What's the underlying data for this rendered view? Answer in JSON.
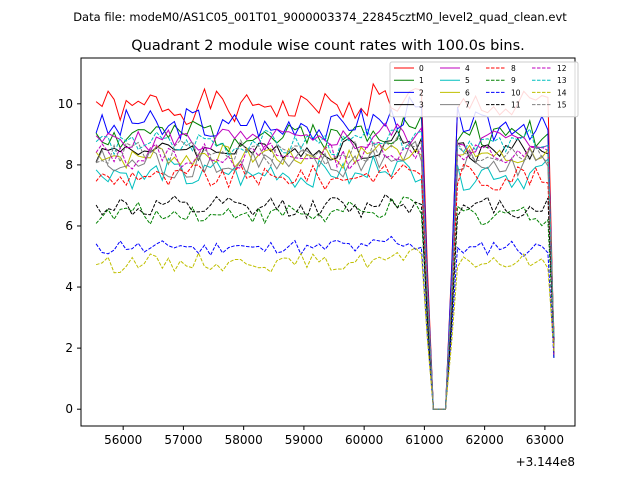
{
  "chart_data": {
    "type": "line",
    "suptitle": "Data file: modeM0/AS1C05_001T01_9000003374_22845cztM0_level2_quad_clean.evt",
    "title": "Quadrant 2 module wise count rates with 100.0s bins.",
    "xlabel": "",
    "ylabel": "",
    "x_offset_label": "+3.144e8",
    "xlim": [
      55300,
      63500
    ],
    "ylim": [
      -0.55,
      11.5
    ],
    "x_ticks": [
      56000,
      57000,
      58000,
      59000,
      60000,
      61000,
      62000,
      63000
    ],
    "x_tick_labels": [
      "56000",
      "57000",
      "58000",
      "59000",
      "60000",
      "61000",
      "62000",
      "63000"
    ],
    "y_ticks": [
      0,
      2,
      4,
      6,
      8,
      10
    ],
    "y_tick_labels": [
      "0",
      "2",
      "4",
      "6",
      "8",
      "10"
    ],
    "x_start": 55550,
    "bin_width": 100,
    "n_bins": 77,
    "gap": {
      "start_index": 56,
      "end_index": 58,
      "value": 0
    },
    "legend_position": "top-right",
    "legend_columns": 4,
    "series": [
      {
        "name": "0",
        "color": "#ff0000",
        "dashed": false,
        "base": 9.9,
        "amp": 0.45,
        "seed": 1
      },
      {
        "name": "1",
        "color": "#008000",
        "dashed": false,
        "base": 9.0,
        "amp": 0.45,
        "seed": 2
      },
      {
        "name": "2",
        "color": "#0000ff",
        "dashed": false,
        "base": 9.3,
        "amp": 0.5,
        "seed": 3
      },
      {
        "name": "3",
        "color": "#000000",
        "dashed": false,
        "base": 8.5,
        "amp": 0.35,
        "seed": 4
      },
      {
        "name": "4",
        "color": "#bf00bf",
        "dashed": false,
        "base": 8.8,
        "amp": 0.35,
        "seed": 5
      },
      {
        "name": "5",
        "color": "#00bfbf",
        "dashed": false,
        "base": 7.7,
        "amp": 0.4,
        "seed": 6
      },
      {
        "name": "6",
        "color": "#bfbf00",
        "dashed": false,
        "base": 8.3,
        "amp": 0.35,
        "seed": 7
      },
      {
        "name": "7",
        "color": "#808080",
        "dashed": false,
        "base": 8.0,
        "amp": 0.45,
        "seed": 8
      },
      {
        "name": "8",
        "color": "#ff0000",
        "dashed": true,
        "base": 7.6,
        "amp": 0.35,
        "seed": 9
      },
      {
        "name": "9",
        "color": "#008000",
        "dashed": true,
        "base": 6.4,
        "amp": 0.3,
        "seed": 10
      },
      {
        "name": "10",
        "color": "#0000ff",
        "dashed": true,
        "base": 5.3,
        "amp": 0.25,
        "seed": 11
      },
      {
        "name": "11",
        "color": "#000000",
        "dashed": true,
        "base": 6.6,
        "amp": 0.3,
        "seed": 12
      },
      {
        "name": "12",
        "color": "#bf00bf",
        "dashed": true,
        "base": 8.3,
        "amp": 0.35,
        "seed": 13
      },
      {
        "name": "13",
        "color": "#00bfbf",
        "dashed": true,
        "base": 8.7,
        "amp": 0.35,
        "seed": 14
      },
      {
        "name": "14",
        "color": "#bfbf00",
        "dashed": true,
        "base": 4.8,
        "amp": 0.25,
        "seed": 15
      },
      {
        "name": "15",
        "color": "#808080",
        "dashed": true,
        "base": 8.4,
        "amp": 0.35,
        "seed": 16
      }
    ]
  }
}
